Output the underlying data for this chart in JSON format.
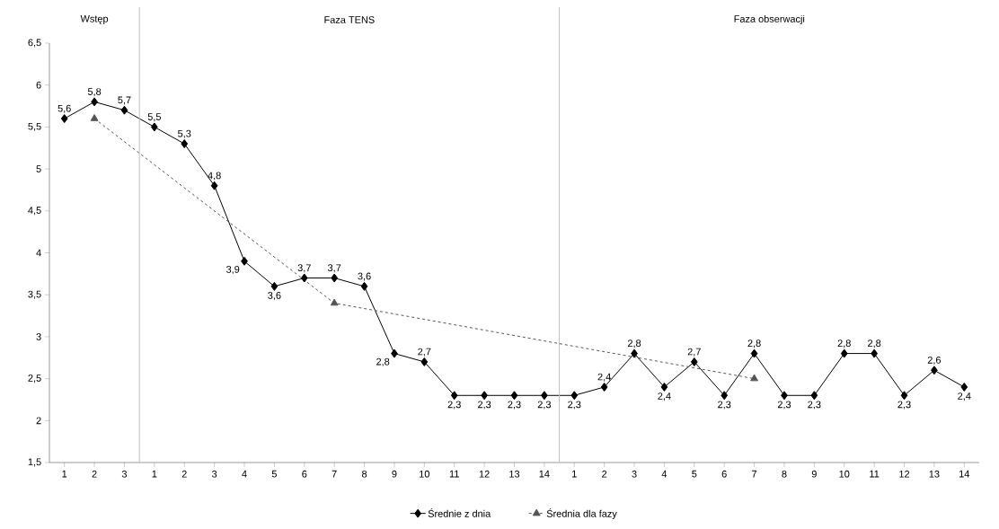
{
  "chart_data": {
    "type": "line",
    "categories": [
      "1",
      "2",
      "3",
      "1",
      "2",
      "3",
      "4",
      "5",
      "6",
      "7",
      "8",
      "9",
      "10",
      "11",
      "12",
      "13",
      "14",
      "1",
      "2",
      "3",
      "4",
      "5",
      "6",
      "7",
      "8",
      "9",
      "10",
      "11",
      "12",
      "13",
      "14"
    ],
    "series": [
      {
        "name": "Średnie z dnia",
        "color": "#000000",
        "marker": "diamond",
        "line_style": "solid",
        "values": [
          5.6,
          5.8,
          5.7,
          5.5,
          5.3,
          4.8,
          3.9,
          3.6,
          3.7,
          3.7,
          3.6,
          2.8,
          2.7,
          2.3,
          2.3,
          2.3,
          2.3,
          2.3,
          2.4,
          2.8,
          2.4,
          2.7,
          2.3,
          2.8,
          2.3,
          2.3,
          2.8,
          2.8,
          2.3,
          2.6,
          2.4
        ],
        "value_labels": [
          "5,6",
          "5,8",
          "5,7",
          "5,5",
          "5,3",
          "4,8",
          "3,9",
          "3,6",
          "3,7",
          "3,7",
          "3,6",
          "2,8",
          "2,7",
          "2,3",
          "2,3",
          "2,3",
          "2,3",
          "2,3",
          "2,4",
          "2,8",
          "2,4",
          "2,7",
          "2,3",
          "2,8",
          "2,3",
          "2,3",
          "2,8",
          "2,8",
          "2,3",
          "2,6",
          "2,4"
        ]
      },
      {
        "name": "Średnia dla fazy",
        "color": "#555555",
        "marker": "triangle",
        "line_style": "dashed",
        "values": [
          null,
          5.6,
          null,
          null,
          null,
          null,
          null,
          null,
          null,
          3.4,
          null,
          null,
          null,
          null,
          null,
          null,
          null,
          null,
          null,
          null,
          null,
          null,
          null,
          2.5,
          null,
          null,
          null,
          null,
          null,
          null,
          null
        ]
      }
    ],
    "ylim": [
      1.5,
      6.5
    ],
    "yticks": [
      {
        "value": 1.5,
        "label": "1,5"
      },
      2,
      {
        "value": 2.5,
        "label": "2,5"
      },
      3,
      {
        "value": 3.5,
        "label": "3,5"
      },
      4,
      {
        "value": 4.5,
        "label": "4,5"
      },
      5,
      {
        "value": 5.5,
        "label": "5,5"
      },
      6,
      {
        "value": 6.5,
        "label": "6,5"
      }
    ],
    "annotations": [
      "Wstęp",
      "Faza TENS",
      "Faza obserwacji"
    ],
    "legend": "bottom"
  }
}
